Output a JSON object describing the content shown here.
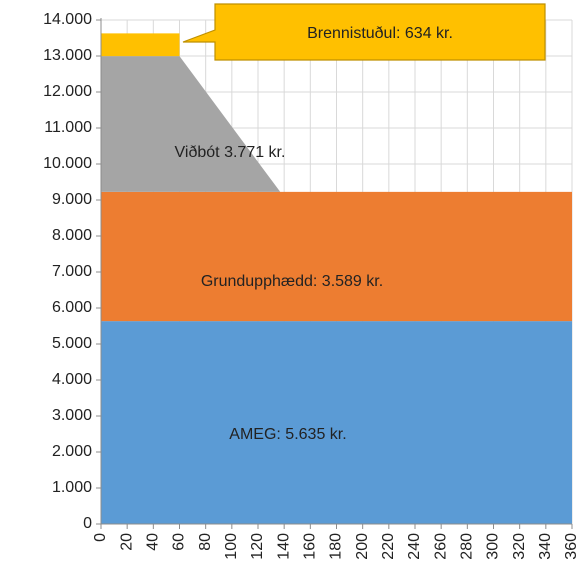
{
  "chart_data": {
    "type": "stacked_area",
    "x": [
      0,
      60,
      137,
      360
    ],
    "series": [
      {
        "name": "AMEG: 5.635 kr.",
        "color": "#5b9bd5",
        "values": [
          5635,
          5635,
          5635,
          5635
        ]
      },
      {
        "name": "Grundupphædd: 3.589 kr.",
        "color": "#ed7d31",
        "values": [
          3589,
          3589,
          3589,
          3589
        ]
      },
      {
        "name": "Viðbót 3.771 kr.",
        "color": "#a5a5a5",
        "values": [
          3771,
          3771,
          0,
          0
        ]
      },
      {
        "name": "Brennistuðul: 634 kr.",
        "color": "#ffc000",
        "values": [
          634,
          634,
          null,
          null
        ]
      }
    ],
    "xlim": [
      0,
      360
    ],
    "xticks": [
      0,
      20,
      40,
      60,
      80,
      100,
      120,
      140,
      160,
      180,
      200,
      220,
      240,
      260,
      280,
      300,
      320,
      340,
      360
    ],
    "ylim": [
      0,
      14000
    ],
    "yticks": [
      0,
      {
        "value": 1000,
        "label": "1.000"
      },
      {
        "value": 2000,
        "label": "2.000"
      },
      {
        "value": 3000,
        "label": "3.000"
      },
      {
        "value": 4000,
        "label": "4.000"
      },
      {
        "value": 5000,
        "label": "5.000"
      },
      {
        "value": 6000,
        "label": "6.000"
      },
      {
        "value": 7000,
        "label": "7.000"
      },
      {
        "value": 8000,
        "label": "8.000"
      },
      {
        "value": 9000,
        "label": "9.000"
      },
      {
        "value": 10000,
        "label": "10.000"
      },
      {
        "value": 11000,
        "label": "11.000"
      },
      {
        "value": 12000,
        "label": "12.000"
      },
      {
        "value": 13000,
        "label": "13.000"
      },
      {
        "value": 14000,
        "label": "14.000"
      }
    ],
    "grid": true
  }
}
